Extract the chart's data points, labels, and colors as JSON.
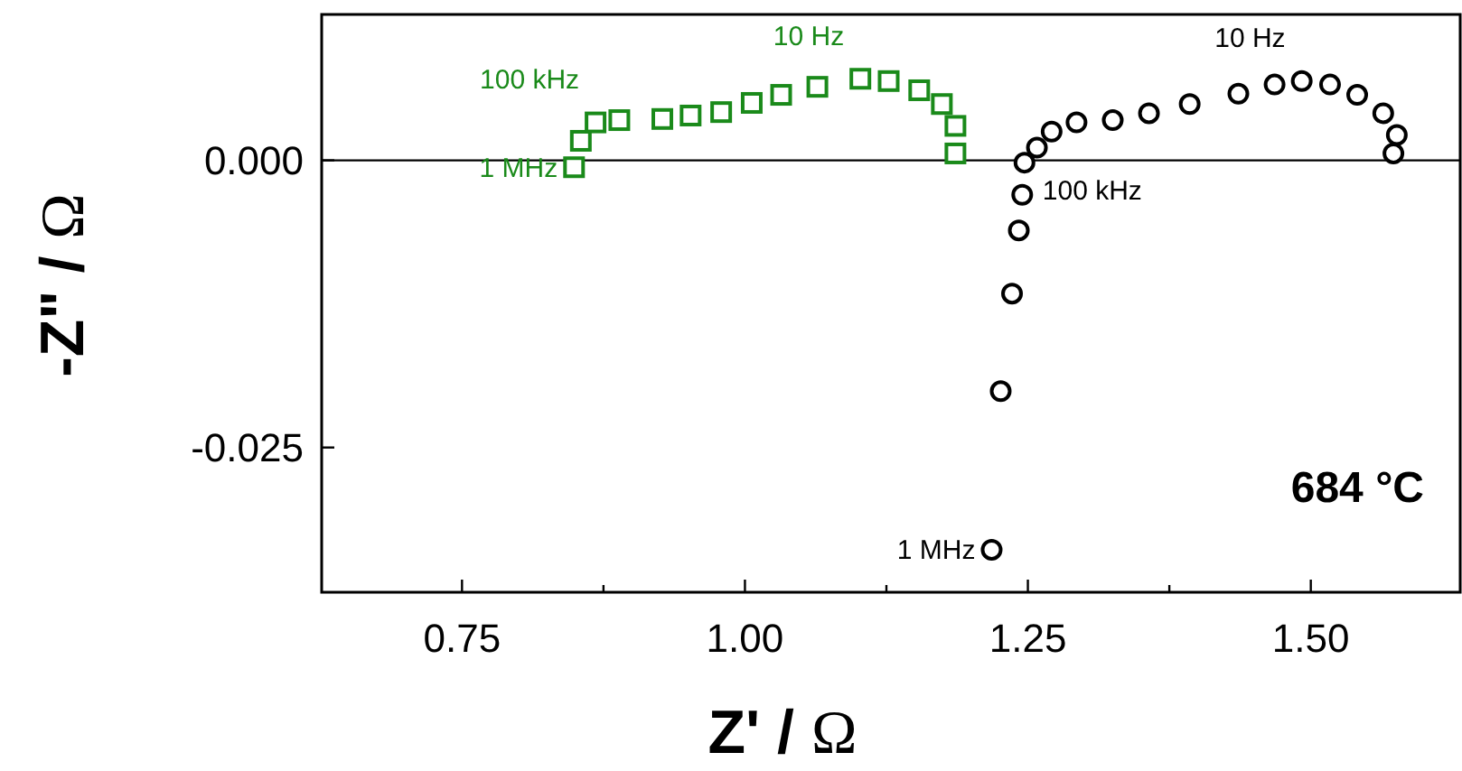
{
  "chart_data": {
    "type": "scatter",
    "xlabel": "Z' / Ω",
    "ylabel": "-Z\" / Ω",
    "xlim": [
      0.626,
      1.632
    ],
    "ylim": [
      -0.0376,
      0.0127
    ],
    "xticks": [
      {
        "value": 0.75,
        "label": "0.75"
      },
      {
        "value": 0.875,
        "label": null
      },
      {
        "value": 1.0,
        "label": "1.00"
      },
      {
        "value": 1.125,
        "label": null
      },
      {
        "value": 1.25,
        "label": "1.25"
      },
      {
        "value": 1.375,
        "label": null
      },
      {
        "value": 1.5,
        "label": "1.50"
      }
    ],
    "yticks": [
      {
        "value": 0,
        "label": "0.000"
      },
      {
        "value": -0.025,
        "label": "-0.025"
      }
    ],
    "grid": false,
    "marker": "circle",
    "ref_lines": [
      {
        "axis": "y",
        "value": 0,
        "color": "#000000"
      }
    ],
    "series": [
      {
        "color": "#1a8a1a",
        "marker": "square",
        "x": [
          0.849,
          0.855,
          0.868,
          0.889,
          0.927,
          0.952,
          0.979,
          1.006,
          1.032,
          1.064,
          1.102,
          1.127,
          1.154,
          1.174,
          1.186,
          1.186
        ],
        "values": [
          -0.0006,
          0.0017,
          0.0033,
          0.0035,
          0.0036,
          0.0039,
          0.0042,
          0.005,
          0.0057,
          0.0064,
          0.0071,
          0.0069,
          0.0061,
          0.0049,
          0.003,
          0.0006
        ]
      },
      {
        "color": "#000000",
        "x": [
          1.218,
          1.226,
          1.236,
          1.242,
          1.245,
          1.247,
          1.258,
          1.271,
          1.293,
          1.325,
          1.357,
          1.393,
          1.436,
          1.468,
          1.492,
          1.517,
          1.541,
          1.564,
          1.576,
          1.573
        ],
        "values": [
          -0.0339,
          -0.0201,
          -0.0116,
          -0.0061,
          -0.003,
          -0.0002,
          0.0011,
          0.0025,
          0.0033,
          0.0035,
          0.0041,
          0.0049,
          0.0058,
          0.0066,
          0.0069,
          0.0066,
          0.0057,
          0.0041,
          0.0022,
          0.0006
        ]
      }
    ],
    "annotations": [
      {
        "text": "100 kHz",
        "x": 0.868,
        "y": 0.0033
      },
      {
        "text": "1 MHz",
        "x": 0.849,
        "y": -0.0006
      },
      {
        "text": "10 Hz",
        "x": 1.102,
        "y": 0.0071
      },
      {
        "text": "10 Hz",
        "x": 1.492,
        "y": 0.0069
      },
      {
        "text": "100 kHz",
        "x": 1.247,
        "y": -0.0002
      },
      {
        "text": "1 MHz",
        "x": 1.218,
        "y": -0.0339
      },
      "684 °C"
    ]
  }
}
